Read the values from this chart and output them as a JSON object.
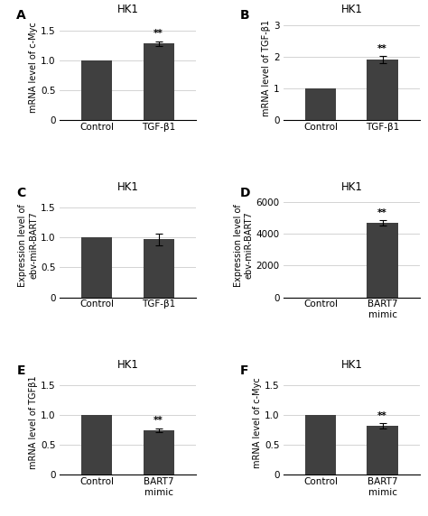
{
  "panels": [
    {
      "label": "A",
      "title": "HK1",
      "ylabel": "mRNA level of c-Myc",
      "categories": [
        "Control",
        "TGF-β1"
      ],
      "values": [
        1.0,
        1.28
      ],
      "errors": [
        0.0,
        0.04
      ],
      "ylim": [
        0,
        1.75
      ],
      "yticks": [
        0,
        0.5,
        1.0,
        1.5
      ],
      "sig": [
        null,
        "**"
      ]
    },
    {
      "label": "B",
      "title": "HK1",
      "ylabel": "mRNA level of TGF-β1",
      "categories": [
        "Control",
        "TGF-β1"
      ],
      "values": [
        1.0,
        1.9
      ],
      "errors": [
        0.0,
        0.12
      ],
      "ylim": [
        0,
        3.3
      ],
      "yticks": [
        0,
        1,
        2,
        3
      ],
      "sig": [
        null,
        "**"
      ]
    },
    {
      "label": "C",
      "title": "HK1",
      "ylabel": "Expression level of\nebv-miR-BART7",
      "categories": [
        "Control",
        "TGF-β1"
      ],
      "values": [
        1.0,
        0.97
      ],
      "errors": [
        0.0,
        0.1
      ],
      "ylim": [
        0,
        1.75
      ],
      "yticks": [
        0,
        0.5,
        1.0,
        1.5
      ],
      "sig": [
        null,
        null
      ]
    },
    {
      "label": "D",
      "title": "HK1",
      "ylabel": "Expression level of\nebv-miR-BART7",
      "categories": [
        "Control",
        "BART7\nmimic"
      ],
      "values": [
        1.0,
        4700
      ],
      "errors": [
        0.0,
        180
      ],
      "ylim": [
        0,
        6600
      ],
      "yticks": [
        0,
        2000,
        4000,
        6000
      ],
      "sig": [
        null,
        "**"
      ]
    },
    {
      "label": "E",
      "title": "HK1",
      "ylabel": "mRNA level of TGFβ1",
      "categories": [
        "Control",
        "BART7\nmimic"
      ],
      "values": [
        1.0,
        0.75
      ],
      "errors": [
        0.0,
        0.03
      ],
      "ylim": [
        0,
        1.75
      ],
      "yticks": [
        0,
        0.5,
        1.0,
        1.5
      ],
      "sig": [
        null,
        "**"
      ]
    },
    {
      "label": "F",
      "title": "HK1",
      "ylabel": "mRNA level of c-Myc",
      "categories": [
        "Control",
        "BART7\nmimic"
      ],
      "values": [
        1.0,
        0.82
      ],
      "errors": [
        0.0,
        0.04
      ],
      "ylim": [
        0,
        1.75
      ],
      "yticks": [
        0,
        0.5,
        1.0,
        1.5
      ],
      "sig": [
        null,
        "**"
      ]
    }
  ],
  "bar_color": "#404040",
  "bar_width": 0.5,
  "background_color": "#ffffff",
  "font_size": 7.5,
  "title_font_size": 8.5,
  "label_font_size": 10,
  "tick_font_size": 7.5,
  "ylabel_font_size": 7.0
}
